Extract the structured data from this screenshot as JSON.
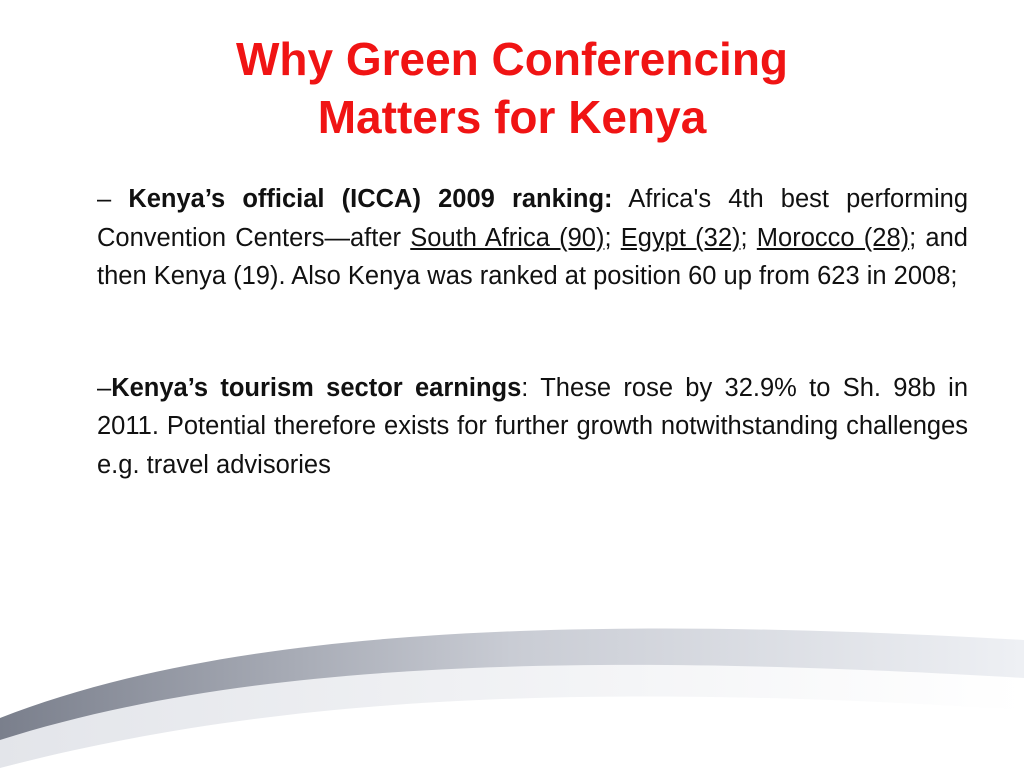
{
  "title_lines": [
    "Why Green Conferencing",
    "Matters for Kenya"
  ],
  "paragraphs": [
    {
      "segments": [
        {
          "text": "– ",
          "style": "normal"
        },
        {
          "text": "Kenya’s official (ICCA) 2009 ranking:",
          "style": "bold"
        },
        {
          "text": " Africa's 4th best performing Convention Centers—after ",
          "style": "normal"
        },
        {
          "text": "South Africa (90)",
          "style": "link"
        },
        {
          "text": "; ",
          "style": "normal"
        },
        {
          "text": "Egypt (32)",
          "style": "link"
        },
        {
          "text": "; ",
          "style": "normal"
        },
        {
          "text": "Morocco (28)",
          "style": "link"
        },
        {
          "text": "; and then Kenya (19). Also Kenya was ranked at position 60 up from 623 in 2008;",
          "style": "normal"
        }
      ]
    },
    {
      "segments": [
        {
          "text": "–",
          "style": "normal"
        },
        {
          "text": "Kenya’s tourism sector earnings",
          "style": "bold"
        },
        {
          "text": ": These rose by 32.9% to Sh. 98b in 2011. Potential therefore exists for further growth notwithstanding challenges e.g. travel advisories",
          "style": "normal"
        }
      ]
    }
  ]
}
